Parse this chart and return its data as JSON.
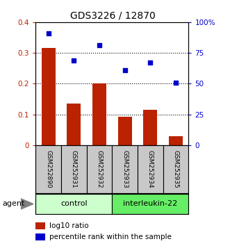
{
  "title": "GDS3226 / 12870",
  "samples": [
    "GSM252890",
    "GSM252931",
    "GSM252932",
    "GSM252933",
    "GSM252934",
    "GSM252935"
  ],
  "log10_ratio": [
    0.315,
    0.135,
    0.2,
    0.093,
    0.115,
    0.03
  ],
  "percentile_rank_pct": [
    91,
    69,
    81,
    61,
    67,
    51
  ],
  "bar_color": "#bb2200",
  "dot_color": "#0000cc",
  "ylim_left": [
    0,
    0.4
  ],
  "ylim_right": [
    0,
    100
  ],
  "yticks_left": [
    0,
    0.1,
    0.2,
    0.3,
    0.4
  ],
  "yticks_right": [
    0,
    25,
    50,
    75,
    100
  ],
  "ytick_labels_left": [
    "0",
    "0.1",
    "0.2",
    "0.3",
    "0.4"
  ],
  "ytick_labels_right": [
    "0",
    "25",
    "50",
    "75",
    "100%"
  ],
  "groups": [
    {
      "label": "control",
      "indices": [
        0,
        1,
        2
      ],
      "color": "#ccffcc"
    },
    {
      "label": "interleukin-22",
      "indices": [
        3,
        4,
        5
      ],
      "color": "#66ee66"
    }
  ],
  "agent_label": "agent",
  "legend_bar_label": "log10 ratio",
  "legend_dot_label": "percentile rank within the sample",
  "plot_area_bg": "#ffffff",
  "sample_area_bg": "#c8c8c8"
}
